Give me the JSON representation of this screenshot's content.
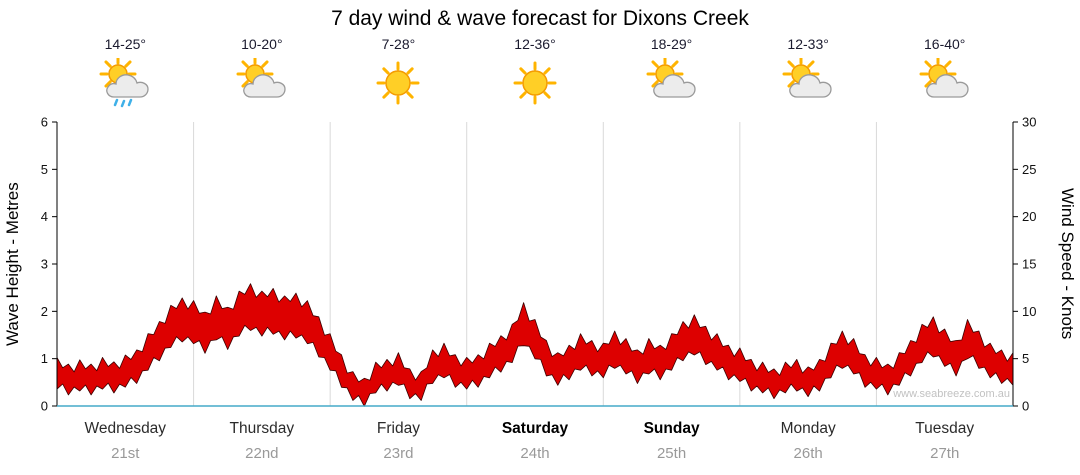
{
  "title": "7 day wind & wave forecast for Dixons Creek",
  "watermark": "www.seabreeze.com.au",
  "forecast": {
    "days": [
      {
        "name": "Wednesday",
        "date": "21st",
        "temp": "14-25°",
        "icon": "sun-cloud-rain",
        "weekend": false
      },
      {
        "name": "Thursday",
        "date": "22nd",
        "temp": "10-20°",
        "icon": "sun-cloud",
        "weekend": false
      },
      {
        "name": "Friday",
        "date": "23rd",
        "temp": "7-28°",
        "icon": "sun",
        "weekend": false
      },
      {
        "name": "Saturday",
        "date": "24th",
        "temp": "12-36°",
        "icon": "sun",
        "weekend": true
      },
      {
        "name": "Sunday",
        "date": "25th",
        "temp": "18-29°",
        "icon": "sun-cloud",
        "weekend": true
      },
      {
        "name": "Monday",
        "date": "26th",
        "temp": "12-33°",
        "icon": "sun-cloud",
        "weekend": false
      },
      {
        "name": "Tuesday",
        "date": "27th",
        "temp": "16-40°",
        "icon": "sun-cloud",
        "weekend": false
      }
    ]
  },
  "chart_data": {
    "type": "area",
    "title": "7 day wind & wave forecast for Dixons Creek",
    "ylabel_left": "Wave Height - Metres",
    "ylabel_right": "Wind Speed - Knots",
    "ylim_left": [
      0,
      6
    ],
    "ylim_right": [
      0,
      30
    ],
    "left_ticks": [
      0,
      1,
      2,
      3,
      4,
      5,
      6
    ],
    "right_ticks": [
      0,
      5,
      10,
      15,
      20,
      25,
      30
    ],
    "categories": [
      "Wednesday 21st",
      "Thursday 22nd",
      "Friday 23rd",
      "Saturday 24th",
      "Sunday 25th",
      "Monday 26th",
      "Tuesday 27th"
    ],
    "grid": "vertical-day-separators",
    "legend": "none",
    "series": [
      {
        "name": "wind-wave-band",
        "color": "#dd0000",
        "units": "metres (left axis; right axis knots = metres x 5)",
        "samples_per_day": 12,
        "values_metres_per_2h": [
          0.9,
          0.8,
          0.85,
          0.8,
          0.9,
          0.85,
          0.95,
          1.1,
          1.4,
          1.7,
          2.0,
          2.2,
          2.1,
          1.9,
          2.2,
          2.0,
          2.3,
          2.5,
          2.3,
          2.4,
          2.2,
          2.3,
          2.1,
          1.8,
          1.4,
          1.0,
          0.6,
          0.5,
          0.8,
          0.9,
          1.0,
          0.7,
          0.6,
          1.1,
          1.2,
          1.0,
          0.9,
          1.0,
          1.2,
          1.4,
          1.6,
          2.1,
          1.7,
          1.3,
          1.0,
          1.2,
          1.4,
          1.3,
          1.2,
          1.5,
          1.3,
          1.1,
          1.3,
          1.2,
          1.4,
          1.7,
          1.8,
          1.6,
          1.4,
          1.2,
          1.1,
          0.9,
          0.8,
          0.7,
          0.8,
          0.9,
          0.7,
          0.9,
          1.2,
          1.5,
          1.3,
          1.0,
          0.9,
          0.8,
          1.0,
          1.3,
          1.6,
          1.8,
          1.5,
          1.3,
          1.7,
          1.5,
          1.2,
          1.1,
          1.0
        ]
      }
    ]
  },
  "colors": {
    "accent_red": "#dd0000",
    "band_outline": "#3a0000",
    "grid": "#d9d9d9",
    "axis": "#000000",
    "baseline": "#45aac8",
    "day_text": "#2b2b2b",
    "date_text": "#999999",
    "watermark_text": "#c2c2c2"
  }
}
